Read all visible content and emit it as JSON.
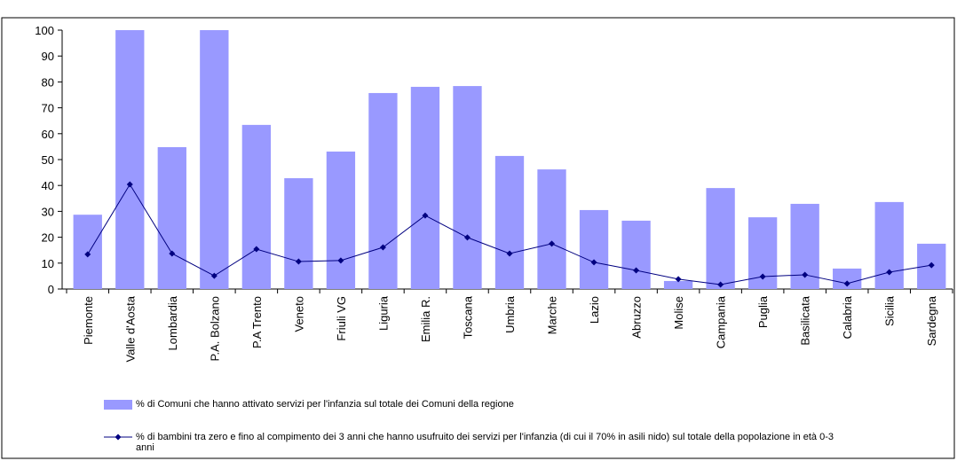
{
  "chart_data": {
    "type": "bar_line",
    "categories": [
      "Piemonte",
      "Valle d'Aosta",
      "Lombardia",
      "P.A. Bolzano",
      "P.A Trento",
      "Veneto",
      "Friuli VG",
      "Liguria",
      "Emilia R.",
      "Toscana",
      "Umbria",
      "Marche",
      "Lazio",
      "Abruzzo",
      "Molise",
      "Campania",
      "Puglia",
      "Basilicata",
      "Calabria",
      "Sicilia",
      "Sardegna"
    ],
    "series": [
      {
        "name": "% di Comuni che hanno attivato servizi per l'infanzia sul totale dei Comuni della regione",
        "type": "bar",
        "color": "#9999ff",
        "values": [
          28.7,
          100,
          54.8,
          100,
          63.4,
          42.8,
          53.1,
          75.7,
          78.1,
          78.4,
          51.4,
          46.2,
          30.5,
          26.4,
          3.1,
          39.0,
          27.7,
          32.9,
          7.9,
          33.6,
          17.5
        ]
      },
      {
        "name": "% di bambini tra zero e fino al compimento dei 3 anni che hanno usufruito dei servizi per l'infanzia (di cui il 70% in asili nido) sul totale della popolazione in età 0-3 anni",
        "type": "line",
        "color": "#000080",
        "values": [
          13.4,
          40.4,
          13.7,
          5.1,
          15.4,
          10.6,
          11.0,
          16.1,
          28.4,
          19.9,
          13.7,
          17.5,
          10.3,
          7.2,
          3.8,
          1.7,
          4.8,
          5.5,
          2.1,
          6.5,
          9.2
        ]
      }
    ],
    "ylim": [
      0,
      100
    ],
    "yticks": [
      0,
      10,
      20,
      30,
      40,
      50,
      60,
      70,
      80,
      90,
      100
    ],
    "grid": false
  }
}
